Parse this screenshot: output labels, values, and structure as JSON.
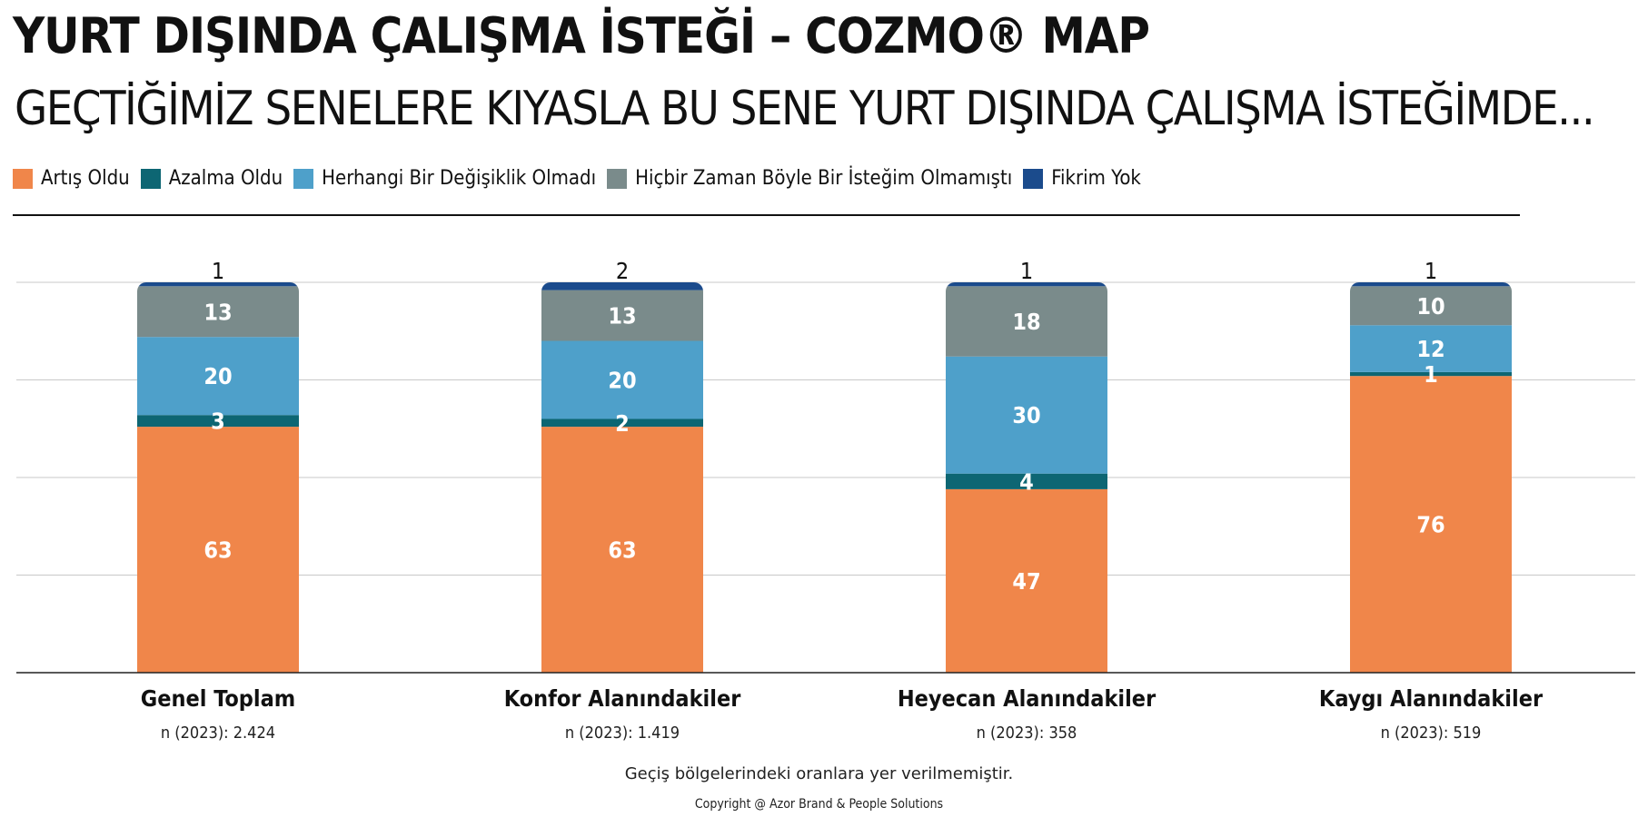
{
  "header": {
    "title": "YURT DIŞINDA ÇALIŞMA İSTEĞİ – COZMO® MAP",
    "subtitle": "GEÇTİĞİMİZ SENELERE KIYASLA BU SENE YURT DIŞINDA ÇALIŞMA İSTEĞİMDE..."
  },
  "footer": {
    "note": "Geçiş bölgelerindeki oranlara yer verilmemiştir.",
    "copyright": "Copyright @ Azor Brand & People Solutions"
  },
  "chart_data": {
    "type": "bar",
    "stacked": true,
    "legend_position": "top-left",
    "grid": true,
    "ylim": [
      0,
      100
    ],
    "categories": [
      "Genel Toplam",
      "Konfor Alanındakiler",
      "Heyecan Alanındakiler",
      "Kaygı Alanındakiler"
    ],
    "sample_sizes": [
      "n (2023): 2.424",
      "n (2023): 1.419",
      "n (2023): 358",
      "n (2023): 519"
    ],
    "series": [
      {
        "name": "Artış Oldu",
        "color": "#F0864A",
        "values": [
          63,
          63,
          47,
          76
        ]
      },
      {
        "name": "Azalma Oldu",
        "color": "#0D6673",
        "values": [
          3,
          2,
          4,
          1
        ]
      },
      {
        "name": "Herhangi Bir Değişiklik Olmadı",
        "color": "#4EA0CA",
        "values": [
          20,
          20,
          30,
          12
        ]
      },
      {
        "name": "Hiçbir Zaman Böyle Bir İsteğim Olmamıştı",
        "color": "#7A8B8B",
        "values": [
          13,
          13,
          18,
          10
        ]
      },
      {
        "name": "Fikrim Yok",
        "color": "#1B4B8C",
        "values": [
          1,
          2,
          1,
          1
        ]
      }
    ]
  }
}
